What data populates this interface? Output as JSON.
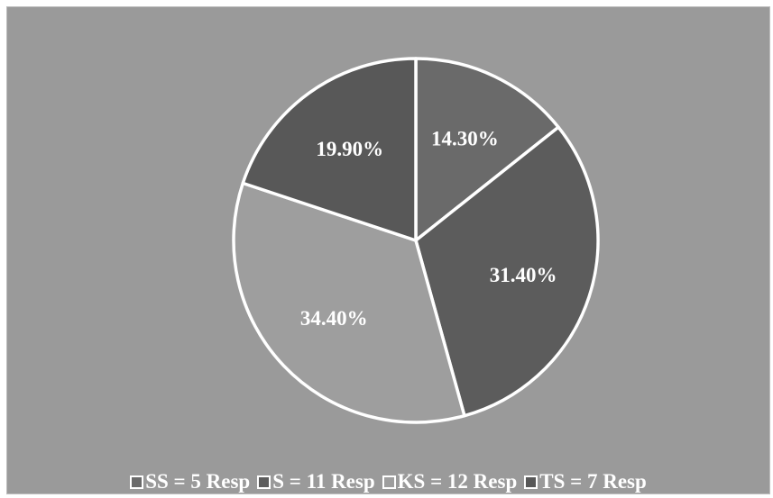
{
  "chart_data": {
    "type": "pie",
    "title": "",
    "slices": [
      {
        "label": "SS = 5 Resp",
        "value": 14.3,
        "display": "14.30%",
        "color": "#6a6a6a"
      },
      {
        "label": "S = 11 Resp",
        "value": 31.4,
        "display": "31.40%",
        "color": "#5c5c5c"
      },
      {
        "label": "KS = 12 Resp",
        "value": 34.4,
        "display": "34.40%",
        "color": "#9e9e9e"
      },
      {
        "label": "TS = 7 Resp",
        "value": 19.9,
        "display": "19.90%",
        "color": "#585858"
      }
    ],
    "legend_position": "bottom",
    "background_color": "#9a9a9a",
    "border_color": "#ffffff"
  }
}
